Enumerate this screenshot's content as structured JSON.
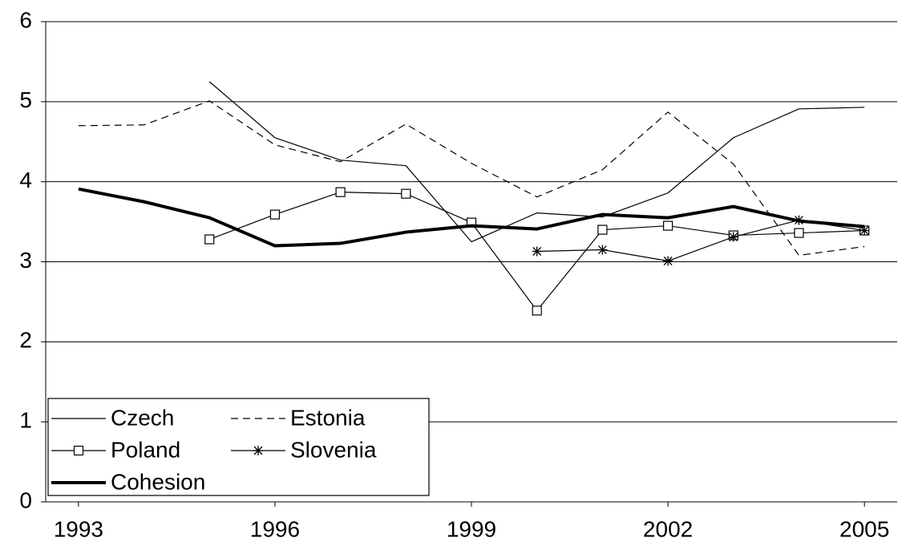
{
  "chart_data": {
    "type": "line",
    "x": [
      1993,
      1994,
      1995,
      1996,
      1997,
      1998,
      1999,
      2000,
      2001,
      2002,
      2003,
      2004,
      2005
    ],
    "xlim": [
      1992.5,
      2005.5
    ],
    "xticks": [
      1993,
      1996,
      1999,
      2002,
      2005
    ],
    "ylim": [
      0,
      6
    ],
    "yticks": [
      0,
      1,
      2,
      3,
      4,
      5,
      6
    ],
    "grid": true,
    "legend": "lower left",
    "series": [
      {
        "name": "Czech",
        "color": "#000000",
        "line_style": "solid",
        "line_width": 1.2,
        "marker": "none",
        "values": [
          null,
          null,
          5.25,
          4.55,
          4.27,
          4.2,
          3.25,
          3.61,
          3.56,
          3.86,
          4.55,
          4.91,
          4.93
        ]
      },
      {
        "name": "Estonia",
        "color": "#000000",
        "line_style": "dashed",
        "line_width": 1.2,
        "marker": "none",
        "values": [
          4.7,
          4.71,
          5.01,
          4.46,
          4.25,
          4.72,
          4.23,
          3.81,
          4.15,
          4.87,
          4.22,
          3.08,
          3.19
        ]
      },
      {
        "name": "Poland",
        "color": "#000000",
        "line_style": "solid",
        "line_width": 1.2,
        "marker": "square",
        "values": [
          null,
          null,
          3.28,
          3.59,
          3.87,
          3.85,
          3.49,
          2.39,
          3.4,
          3.45,
          3.33,
          3.36,
          3.39
        ]
      },
      {
        "name": "Slovenia",
        "color": "#000000",
        "line_style": "solid",
        "line_width": 1.2,
        "marker": "asterisk",
        "values": [
          null,
          null,
          null,
          null,
          null,
          null,
          null,
          3.13,
          3.15,
          3.01,
          3.31,
          3.52,
          3.39
        ]
      },
      {
        "name": "Cohesion",
        "color": "#000000",
        "line_style": "solid",
        "line_width": 4,
        "marker": "none",
        "values": [
          3.91,
          3.75,
          3.55,
          3.2,
          3.23,
          3.37,
          3.45,
          3.41,
          3.59,
          3.55,
          3.69,
          3.51,
          3.44
        ]
      }
    ]
  }
}
